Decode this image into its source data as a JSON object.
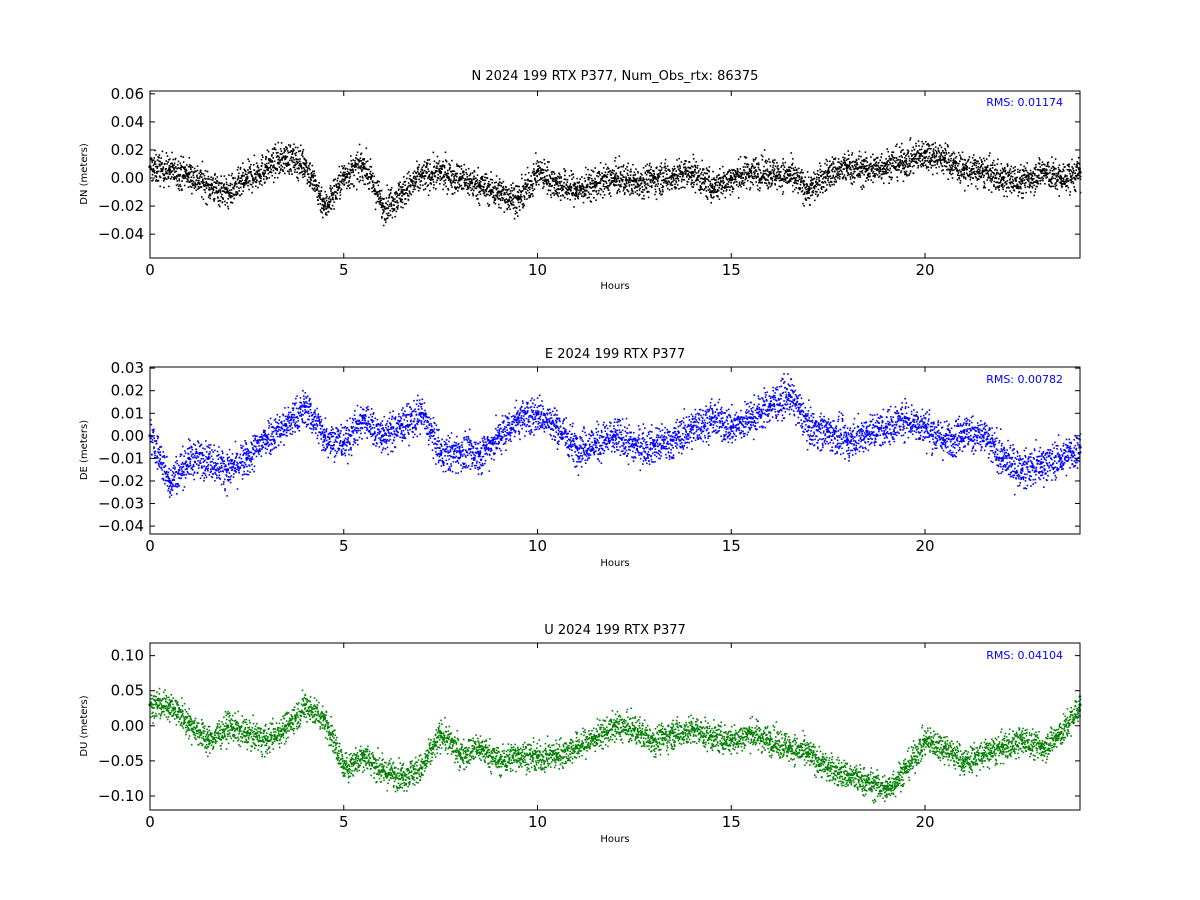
{
  "chart_data": [
    {
      "type": "scatter",
      "title": "N 2024 199 RTX  P377, Num_Obs_rtx: 86375",
      "xlabel": "Hours",
      "ylabel": "DN (meters)",
      "xlim": [
        0,
        24
      ],
      "ylim": [
        -0.057,
        0.062
      ],
      "xticks": [
        0,
        5,
        10,
        15,
        20
      ],
      "xtick_labels": [
        "0",
        "5",
        "10",
        "15",
        "20"
      ],
      "yticks": [
        -0.04,
        -0.02,
        0.0,
        0.02,
        0.04,
        0.06
      ],
      "ytick_labels": [
        "−0.04",
        "−0.02",
        "0.00",
        "0.02",
        "0.04",
        "0.06"
      ],
      "rms_label": "RMS:  0.01174",
      "color": "#000000",
      "grid": false,
      "series": [
        {
          "x": [
            0,
            0.5,
            1,
            1.5,
            2,
            2.5,
            3,
            3.5,
            4,
            4.5,
            5,
            5.5,
            6,
            6.5,
            7,
            7.5,
            8,
            8.5,
            9,
            9.5,
            10,
            10.5,
            11,
            11.5,
            12,
            12.5,
            13,
            13.5,
            14,
            14.5,
            15,
            15.5,
            16,
            16.5,
            17,
            17.5,
            18,
            18.5,
            19,
            19.5,
            20,
            20.5,
            21,
            21.5,
            22,
            22.5,
            23,
            23.5,
            24
          ],
          "y": [
            0.008,
            0.006,
            0.003,
            -0.005,
            -0.01,
            0.0,
            0.008,
            0.015,
            0.01,
            -0.02,
            0.002,
            0.01,
            -0.02,
            -0.01,
            0.002,
            0.004,
            0.0,
            -0.005,
            -0.01,
            -0.015,
            0.005,
            -0.004,
            -0.008,
            -0.003,
            0.0,
            -0.002,
            0.0,
            0.002,
            0.004,
            -0.006,
            0.0,
            0.005,
            0.004,
            0.002,
            -0.008,
            0.004,
            0.008,
            0.006,
            0.01,
            0.012,
            0.018,
            0.014,
            0.006,
            0.005,
            0.0,
            -0.002,
            0.005,
            0.0,
            0.004
          ]
        }
      ]
    },
    {
      "type": "scatter",
      "title": "E 2024 199 RTX  P377",
      "xlabel": "Hours",
      "ylabel": "DE (meters)",
      "xlim": [
        0,
        24
      ],
      "ylim": [
        -0.0435,
        0.0305
      ],
      "xticks": [
        0,
        5,
        10,
        15,
        20
      ],
      "xtick_labels": [
        "0",
        "5",
        "10",
        "15",
        "20"
      ],
      "yticks": [
        -0.04,
        -0.03,
        -0.02,
        -0.01,
        0.0,
        0.01,
        0.02,
        0.03
      ],
      "ytick_labels": [
        "−0.04",
        "−0.03",
        "−0.02",
        "−0.01",
        "0.00",
        "0.01",
        "0.02",
        "0.03"
      ],
      "rms_label": "RMS:  0.00782",
      "color": "#0000ff",
      "grid": false,
      "series": [
        {
          "x": [
            0,
            0.5,
            1,
            1.5,
            2,
            2.5,
            3,
            3.5,
            4,
            4.5,
            5,
            5.5,
            6,
            6.5,
            7,
            7.5,
            8,
            8.5,
            9,
            9.5,
            10,
            10.5,
            11,
            11.5,
            12,
            12.5,
            13,
            13.5,
            14,
            14.5,
            15,
            15.5,
            16,
            16.5,
            17,
            17.5,
            18,
            18.5,
            19,
            19.5,
            20,
            20.5,
            21,
            21.5,
            22,
            22.5,
            23,
            23.5,
            24
          ],
          "y": [
            0.0,
            -0.02,
            -0.01,
            -0.01,
            -0.015,
            -0.01,
            0.0,
            0.005,
            0.013,
            0.0,
            -0.003,
            0.008,
            0.0,
            0.005,
            0.01,
            -0.008,
            -0.007,
            -0.008,
            0.0,
            0.008,
            0.01,
            0.004,
            -0.005,
            -0.003,
            0.0,
            -0.004,
            -0.004,
            -0.002,
            0.004,
            0.008,
            0.004,
            0.008,
            0.014,
            0.018,
            0.004,
            0.002,
            -0.002,
            0.002,
            0.004,
            0.008,
            0.004,
            -0.002,
            0.002,
            0.0,
            -0.01,
            -0.015,
            -0.012,
            -0.01,
            -0.005
          ]
        }
      ]
    },
    {
      "type": "scatter",
      "title": "U 2024 199 RTX  P377",
      "xlabel": "Hours",
      "ylabel": "DU (meters)",
      "xlim": [
        0,
        24
      ],
      "ylim": [
        -0.12,
        0.118
      ],
      "xticks": [
        0,
        5,
        10,
        15,
        20
      ],
      "xtick_labels": [
        "0",
        "5",
        "10",
        "15",
        "20"
      ],
      "yticks": [
        -0.1,
        -0.05,
        0.0,
        0.05,
        0.1
      ],
      "ytick_labels": [
        "−0.10",
        "−0.05",
        "0.00",
        "0.05",
        "0.10"
      ],
      "rms_label": "RMS:  0.04104",
      "color": "#008000",
      "grid": false,
      "series": [
        {
          "x": [
            0,
            0.5,
            1,
            1.5,
            2,
            2.5,
            3,
            3.5,
            4,
            4.5,
            5,
            5.5,
            6,
            6.5,
            7,
            7.5,
            8,
            8.5,
            9,
            9.5,
            10,
            10.5,
            11,
            11.5,
            12,
            12.5,
            13,
            13.5,
            14,
            14.5,
            15,
            15.5,
            16,
            16.5,
            17,
            17.5,
            18,
            18.5,
            19,
            19.5,
            20,
            20.5,
            21,
            21.5,
            22,
            22.5,
            23,
            23.5,
            24
          ],
          "y": [
            0.03,
            0.03,
            0.005,
            -0.02,
            0.0,
            -0.01,
            -0.02,
            0.0,
            0.03,
            0.01,
            -0.06,
            -0.04,
            -0.065,
            -0.07,
            -0.06,
            -0.01,
            -0.04,
            -0.03,
            -0.05,
            -0.04,
            -0.045,
            -0.04,
            -0.03,
            -0.015,
            0.0,
            -0.005,
            -0.02,
            -0.01,
            -0.005,
            -0.015,
            -0.02,
            -0.01,
            -0.02,
            -0.03,
            -0.04,
            -0.06,
            -0.07,
            -0.08,
            -0.09,
            -0.06,
            -0.02,
            -0.03,
            -0.05,
            -0.04,
            -0.03,
            -0.02,
            -0.03,
            -0.01,
            0.03
          ]
        }
      ]
    }
  ]
}
